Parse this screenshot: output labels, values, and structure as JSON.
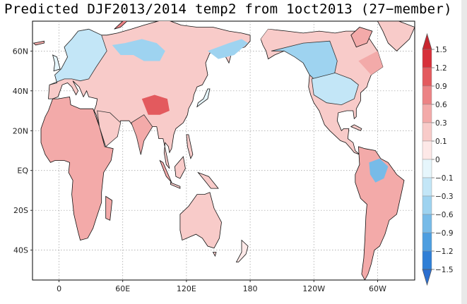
{
  "title": "Predicted DJF2013/2014 temp2 from 1oct2013 (27−member)",
  "map": {
    "lat_labels": [
      "60N",
      "40N",
      "20N",
      "EQ",
      "20S",
      "40S"
    ],
    "lat_values": [
      60,
      40,
      20,
      0,
      -20,
      -40
    ],
    "lon_labels": [
      "0",
      "60E",
      "120E",
      "180",
      "120W",
      "60W"
    ],
    "lon_values": [
      0,
      60,
      120,
      180,
      240,
      300
    ],
    "lat_range": [
      -55,
      75
    ],
    "lon_range": [
      -25,
      335
    ],
    "gridlines": true,
    "ocean_color": "#ffffff"
  },
  "colorbar": {
    "labels": [
      "1.5",
      "1.2",
      "0.9",
      "0.6",
      "0.3",
      "0.1",
      "0",
      "−0.1",
      "−0.3",
      "−0.6",
      "−0.9",
      "−1.2",
      "−1.5"
    ],
    "colors": [
      "#d7303a",
      "#e35a5e",
      "#ec8385",
      "#f3aaa9",
      "#f8cbc9",
      "#fde8e7",
      "#e6f6fc",
      "#c3e6f7",
      "#9ed3f0",
      "#77bbe8",
      "#4d9ee0",
      "#2f7fd6"
    ],
    "arrow_top_color": "#c8262f",
    "arrow_bottom_color": "#2b6fd0"
  }
}
